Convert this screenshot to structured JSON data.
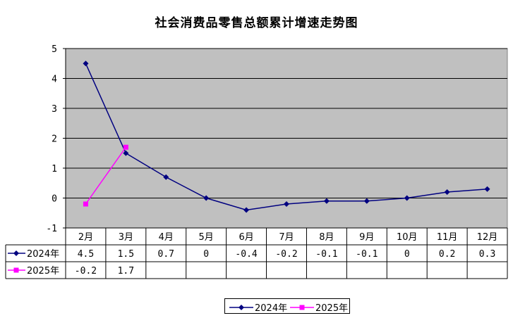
{
  "title": "社会消费品零售总额累计增速走势图",
  "chart_data": {
    "type": "line",
    "categories": [
      "2月",
      "3月",
      "4月",
      "5月",
      "6月",
      "7月",
      "8月",
      "9月",
      "10月",
      "11月",
      "12月"
    ],
    "series": [
      {
        "name": "2024年",
        "values": [
          4.5,
          1.5,
          0.7,
          0,
          -0.4,
          -0.2,
          -0.1,
          -0.1,
          0,
          0.2,
          0.3
        ],
        "color": "#000080",
        "marker": "diamond"
      },
      {
        "name": "2025年",
        "values": [
          -0.2,
          1.7,
          null,
          null,
          null,
          null,
          null,
          null,
          null,
          null,
          null
        ],
        "color": "#FF00FF",
        "marker": "square"
      }
    ],
    "table_values": [
      [
        "4.5",
        "1.5",
        "0.7",
        "0",
        "-0.4",
        "-0.2",
        "-0.1",
        "-0.1",
        "0",
        "0.2",
        "0.3"
      ],
      [
        "-0.2",
        "1.7",
        "",
        "",
        "",
        "",
        "",
        "",
        "",
        "",
        ""
      ]
    ],
    "yticks": [
      "5",
      "4",
      "3",
      "2",
      "1",
      "0",
      "-1"
    ],
    "ylim": [
      -1,
      5
    ],
    "plot_background": "#C0C0C0",
    "grid": true,
    "legend_position": "bottom-center",
    "data_table": true
  }
}
